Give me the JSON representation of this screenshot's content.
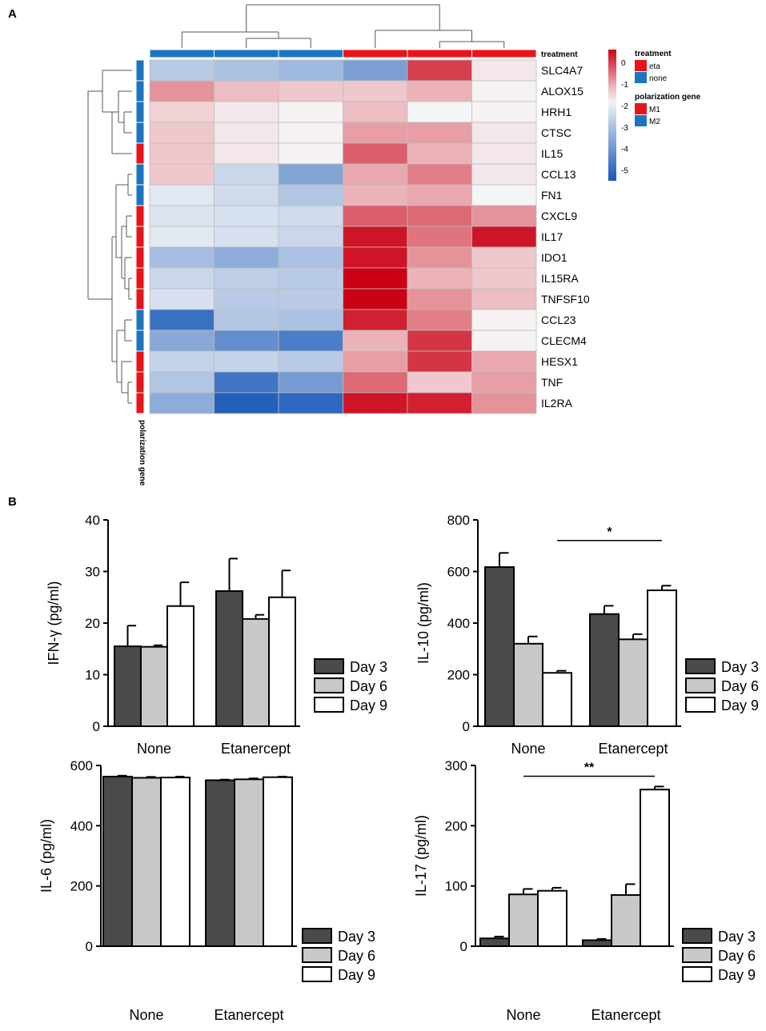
{
  "panels": {
    "a": "A",
    "b": "B"
  },
  "chart_data": [
    {
      "type": "heatmap",
      "panel": "A",
      "rows": [
        "SLC4A7",
        "ALOX15",
        "HRH1",
        "CTSC",
        "IL15",
        "CCL13",
        "FN1",
        "CXCL9",
        "IL17",
        "IDO1",
        "IL15RA",
        "TNFSF10",
        "CCL23",
        "CLECM4",
        "HESX1",
        "TNF",
        "IL2RA"
      ],
      "row_groups": [
        "M2",
        "M2",
        "M2",
        "M2",
        "M1",
        "M2",
        "M2",
        "M1",
        "M1",
        "M1",
        "M1",
        "M1",
        "M2",
        "M2",
        "M1",
        "M1",
        "M1"
      ],
      "column_groups": [
        "none",
        "none",
        "none",
        "eta",
        "eta",
        "eta"
      ],
      "values": [
        [
          -2.8,
          -3.0,
          -3.2,
          -3.8,
          0.0,
          -1.6
        ],
        [
          -0.8,
          -1.2,
          -1.3,
          -1.3,
          -1.1,
          -1.7
        ],
        [
          -1.4,
          -1.6,
          -1.7,
          -1.2,
          -1.8,
          -1.7
        ],
        [
          -1.3,
          -1.6,
          -1.7,
          -0.9,
          -0.9,
          -1.6
        ],
        [
          -1.3,
          -1.6,
          -1.7,
          -0.3,
          -1.1,
          -1.6
        ],
        [
          -1.3,
          -2.5,
          -3.7,
          -1.0,
          -0.6,
          -1.6
        ],
        [
          -2.1,
          -2.4,
          -2.9,
          -1.1,
          -1.0,
          -1.8
        ],
        [
          -2.2,
          -2.3,
          -2.4,
          -0.3,
          -0.4,
          -0.8
        ],
        [
          -2.1,
          -2.3,
          -2.5,
          0.4,
          -0.5,
          0.4
        ],
        [
          -3.1,
          -3.5,
          -3.0,
          0.4,
          -0.8,
          -1.3
        ],
        [
          -2.5,
          -2.7,
          -2.8,
          0.8,
          -1.1,
          -1.3
        ],
        [
          -2.3,
          -2.8,
          -2.8,
          0.9,
          -0.8,
          -1.2
        ],
        [
          -4.9,
          -2.9,
          -3.0,
          0.3,
          -0.6,
          -1.7
        ],
        [
          -3.6,
          -4.2,
          -4.6,
          -1.1,
          0.1,
          -1.7
        ],
        [
          -2.6,
          -2.6,
          -2.8,
          -0.9,
          0.1,
          -1.0
        ],
        [
          -2.9,
          -4.8,
          -3.9,
          -0.4,
          -1.3,
          -0.9
        ],
        [
          -3.5,
          -5.3,
          -5.1,
          0.4,
          0.3,
          -0.8
        ]
      ],
      "color_range": [
        -5.5,
        0.6
      ],
      "colorbar_ticks": [
        0,
        -1,
        -2,
        -3,
        -4,
        -5
      ],
      "column_annotation_label": "treatment",
      "row_annotation_label": "polarization gene",
      "legend": {
        "treatment_title": "treatment",
        "treatment_items": [
          {
            "label": "eta",
            "color": "#e8141b"
          },
          {
            "label": "none",
            "color": "#1b74c0"
          }
        ],
        "polarization_title": "polarization gene",
        "polarization_items": [
          {
            "label": "M1",
            "color": "#e8141b"
          },
          {
            "label": "M2",
            "color": "#1b74c0"
          }
        ]
      }
    },
    {
      "type": "bar",
      "panel": "B",
      "ylabel": "IFN-γ (pg/ml)",
      "categories": [
        "None",
        "Etanercept"
      ],
      "series": [
        {
          "name": "Day 3",
          "values": [
            15.5,
            26.2
          ],
          "errors": [
            4.0,
            6.3
          ]
        },
        {
          "name": "Day 6",
          "values": [
            15.4,
            20.8
          ],
          "errors": [
            0.3,
            0.8
          ]
        },
        {
          "name": "Day 9",
          "values": [
            23.3,
            25.0
          ],
          "errors": [
            4.6,
            5.2
          ]
        }
      ],
      "ylim": [
        0,
        40
      ],
      "yticks": [
        0,
        10,
        20,
        30,
        40
      ],
      "significance": null
    },
    {
      "type": "bar",
      "panel": "B",
      "ylabel": "IL-10 (pg/ml)",
      "categories": [
        "None",
        "Etanercept"
      ],
      "series": [
        {
          "name": "Day 3",
          "values": [
            617,
            435
          ],
          "errors": [
            55,
            32
          ]
        },
        {
          "name": "Day 6",
          "values": [
            320,
            337
          ],
          "errors": [
            28,
            20
          ]
        },
        {
          "name": "Day 9",
          "values": [
            207,
            527
          ],
          "errors": [
            8,
            18
          ]
        }
      ],
      "ylim": [
        0,
        800
      ],
      "yticks": [
        0,
        200,
        400,
        600,
        800
      ],
      "significance": {
        "from": "None|Day 9",
        "to": "Etanercept|Day 9",
        "label": "*",
        "y": 720
      }
    },
    {
      "type": "bar",
      "panel": "B",
      "ylabel": "IL-6 (pg/ml)",
      "categories": [
        "None",
        "Etanercept"
      ],
      "series": [
        {
          "name": "Day 3",
          "values": [
            563,
            551
          ],
          "errors": [
            3,
            2
          ]
        },
        {
          "name": "Day 6",
          "values": [
            559,
            554
          ],
          "errors": [
            3,
            3
          ]
        },
        {
          "name": "Day 9",
          "values": [
            560,
            561
          ],
          "errors": [
            3,
            2
          ]
        }
      ],
      "ylim": [
        0,
        600
      ],
      "yticks": [
        0,
        200,
        400,
        600
      ],
      "significance": null
    },
    {
      "type": "bar",
      "panel": "B",
      "ylabel": "IL-17 (pg/ml)",
      "categories": [
        "None",
        "Etanercept"
      ],
      "series": [
        {
          "name": "Day 3",
          "values": [
            13,
            10
          ],
          "errors": [
            3,
            2
          ]
        },
        {
          "name": "Day 6",
          "values": [
            86,
            85
          ],
          "errors": [
            9,
            18
          ]
        },
        {
          "name": "Day 9",
          "values": [
            92,
            260
          ],
          "errors": [
            5,
            5
          ]
        }
      ],
      "ylim": [
        0,
        300
      ],
      "yticks": [
        0,
        100,
        200,
        300
      ],
      "significance": {
        "from": "None|Day 6",
        "to": "Etanercept|Day 9",
        "label": "**",
        "y": 282
      }
    }
  ],
  "colors": {
    "day3": "#4a4a4a",
    "day6": "#c8c8c8",
    "day9": "#ffffff",
    "red": "#e8141b",
    "blue": "#1b74c0"
  }
}
